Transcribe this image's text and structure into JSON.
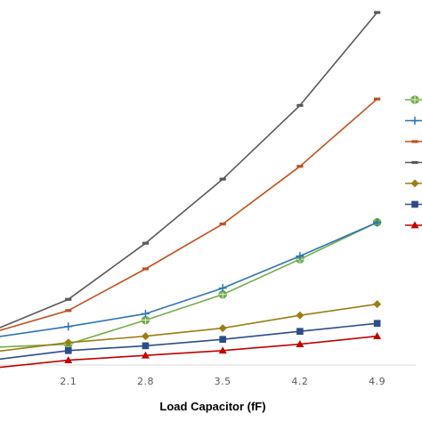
{
  "chart_data": {
    "type": "line",
    "xlabel": "Load Capacitor (fF)",
    "ylabel": "",
    "title": "",
    "x": [
      1.4,
      2.1,
      2.8,
      3.5,
      4.2,
      4.9
    ],
    "x_tick_labels": [
      "2.1",
      "2.8",
      "3.5",
      "4.2",
      "4.9"
    ],
    "xlim": [
      1.4,
      5.25
    ],
    "ylim": [
      0,
      100
    ],
    "grid": false,
    "legend": "right",
    "series": [
      {
        "color": "#70ad47",
        "marker": "circle-plus",
        "values": [
          5.5,
          6.5,
          14.0,
          22.0,
          33.0,
          44.5
        ]
      },
      {
        "color": "#2e74b5",
        "marker": "plus",
        "values": [
          8.5,
          12.0,
          16.0,
          24.0,
          34.0,
          44.5
        ]
      },
      {
        "color": "#c0501e",
        "marker": "dash",
        "values": [
          10.0,
          17.0,
          30.0,
          44.0,
          62.0,
          83.0
        ]
      },
      {
        "color": "#595959",
        "marker": "dash",
        "values": [
          10.5,
          20.5,
          38.0,
          58.0,
          81.0,
          110.0
        ]
      },
      {
        "color": "#9c7d12",
        "marker": "diamond",
        "values": [
          4.0,
          7.0,
          9.0,
          11.5,
          15.5,
          19.0
        ]
      },
      {
        "color": "#2a4d8a",
        "marker": "square",
        "values": [
          1.5,
          4.5,
          6.0,
          8.0,
          10.5,
          13.0
        ]
      },
      {
        "color": "#c00000",
        "marker": "triangle",
        "values": [
          -1.0,
          1.5,
          3.0,
          4.5,
          6.5,
          9.0
        ]
      }
    ]
  }
}
